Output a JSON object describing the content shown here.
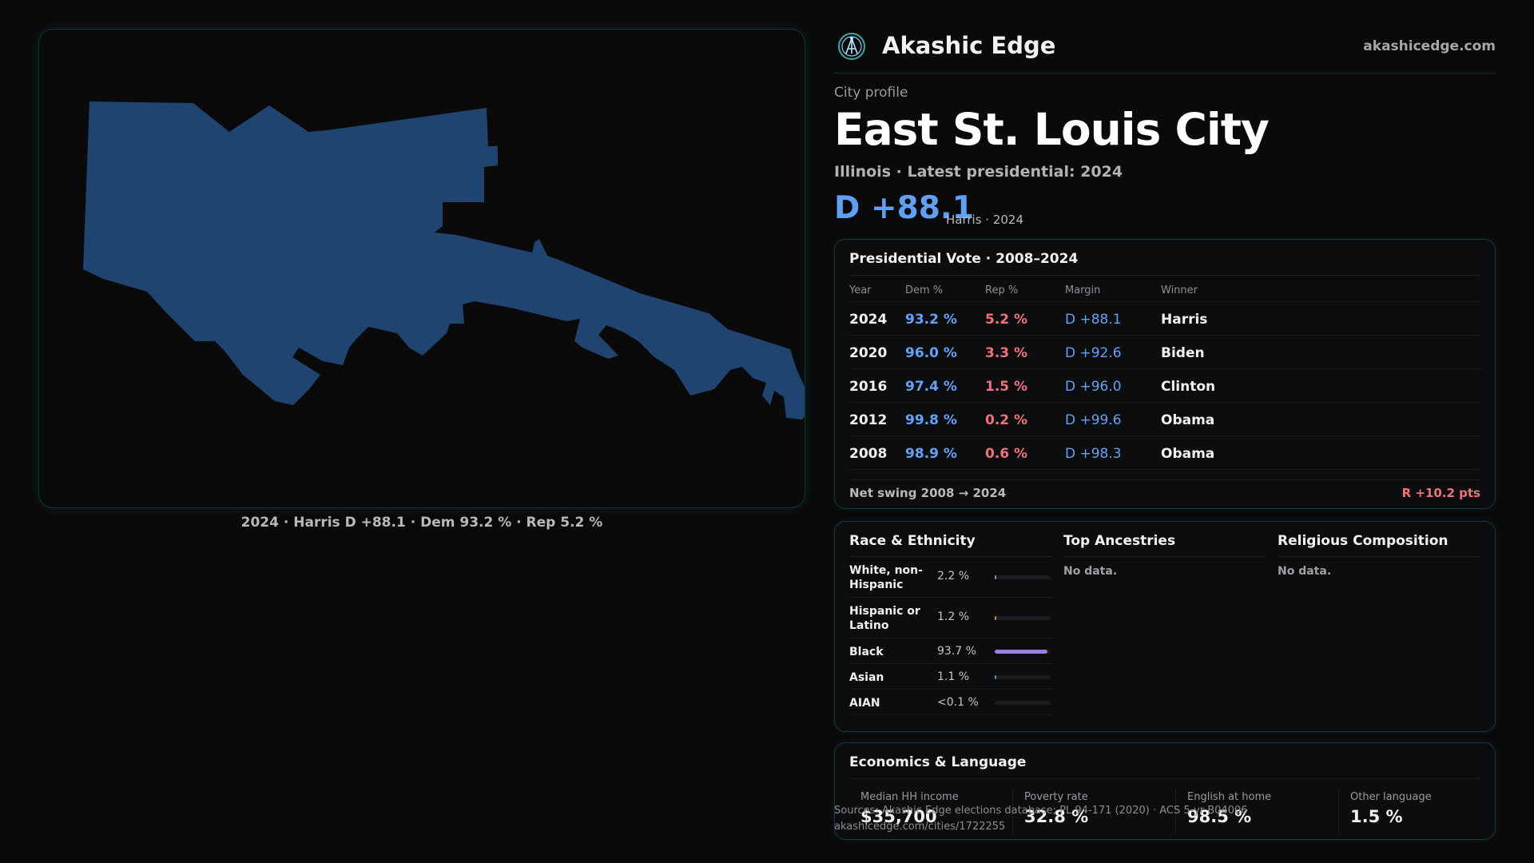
{
  "brand": {
    "name": "Akashic Edge",
    "url": "akashicedge.com",
    "logo_icon": "akashic-edge-logo-icon"
  },
  "profile": {
    "kicker": "City profile",
    "title": "East St. Louis City",
    "subtitle": "Illinois · Latest presidential: 2024",
    "margin": "D +88.1",
    "margin_detail": "Harris · 2024"
  },
  "map": {
    "caption": "2024 · Harris D +88.1 · Dem 93.2 % · Rep 5.2 %",
    "fill_color": "#1f4470"
  },
  "votes": {
    "title": "Presidential Vote · 2008–2024",
    "headers": {
      "year": "Year",
      "dem": "Dem %",
      "rep": "Rep %",
      "margin": "Margin",
      "winner": "Winner"
    },
    "rows": [
      {
        "year": "2024",
        "dem": "93.2 %",
        "rep": "5.2 %",
        "margin": "D +88.1",
        "winner": "Harris"
      },
      {
        "year": "2020",
        "dem": "96.0 %",
        "rep": "3.3 %",
        "margin": "D +92.6",
        "winner": "Biden"
      },
      {
        "year": "2016",
        "dem": "97.4 %",
        "rep": "1.5 %",
        "margin": "D +96.0",
        "winner": "Clinton"
      },
      {
        "year": "2012",
        "dem": "99.8 %",
        "rep": "0.2 %",
        "margin": "D +99.6",
        "winner": "Obama"
      },
      {
        "year": "2008",
        "dem": "98.9 %",
        "rep": "0.6 %",
        "margin": "D +98.3",
        "winner": "Obama"
      }
    ],
    "net_swing_label": "Net swing 2008 → 2024",
    "net_swing_value": "R +10.2 pts"
  },
  "demographics": {
    "race_title": "Race & Ethnicity",
    "race": [
      {
        "label": "White, non-Hispanic",
        "pct": "2.2 %",
        "share": 0.022,
        "color": "#8e8e94"
      },
      {
        "label": "Hispanic or Latino",
        "pct": "1.2 %",
        "share": 0.012,
        "color": "#e0873a"
      },
      {
        "label": "Black",
        "pct": "93.7 %",
        "share": 0.937,
        "color": "#9c7fe0"
      },
      {
        "label": "Asian",
        "pct": "1.1 %",
        "share": 0.011,
        "color": "#3aa7a0"
      },
      {
        "label": "AIAN",
        "pct": "<0.1 %",
        "share": 0.0,
        "color": "#c9a94a"
      }
    ],
    "ancestries_title": "Top Ancestries",
    "ancestries_value": "No data.",
    "religion_title": "Religious Composition",
    "religion_value": "No data."
  },
  "economics": {
    "title": "Economics & Language",
    "stats": [
      {
        "label": "Median HH income",
        "value": "$35,700"
      },
      {
        "label": "Poverty rate",
        "value": "32.8 %"
      },
      {
        "label": "English at home",
        "value": "98.5 %"
      },
      {
        "label": "Other language",
        "value": "1.5 %"
      }
    ]
  },
  "source": {
    "line1": "Sources: Akashic Edge elections database; PL 94-171 (2020) · ACS 5-yr B04006",
    "line2": "akashicedge.com/cities/1722255"
  },
  "colors": {
    "accent_dem": "#63a2f6",
    "accent_rep": "#f2707a",
    "panel_border": "#143a3c"
  }
}
